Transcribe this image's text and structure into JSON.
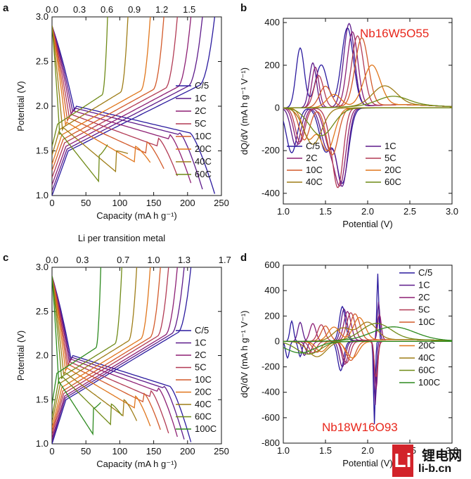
{
  "figure": {
    "lithiation_axis_label": "Li per transition metal",
    "legend_colors": {
      "C/5": "#2a1a9e",
      "1C": "#5d1a8a",
      "2C": "#8d1f74",
      "5C": "#b23a54",
      "10C": "#d35a2a",
      "20C": "#e0761c",
      "40C": "#9e7d17",
      "60C": "#6f8a17",
      "100C": "#2d8a1f"
    }
  },
  "watermark": {
    "logo_text": "Li",
    "chinese": "锂电网",
    "url": "li-b.cn"
  },
  "chart_data": [
    {
      "panel": "a",
      "type": "line",
      "xlabel": "Capacity (mA h g⁻¹)",
      "ylabel": "Potential (V)",
      "xlim": [
        0,
        250
      ],
      "ylim": [
        1.0,
        3.0
      ],
      "xticks": [
        0,
        50,
        100,
        150,
        200,
        250
      ],
      "yticks": [
        1.0,
        1.5,
        2.0,
        2.5,
        3.0
      ],
      "top_axis_ticks": [
        "0.0",
        "0.3",
        "0.6",
        "0.9",
        "1.2",
        "1.5"
      ],
      "top_axis_positions": [
        0,
        40.5,
        81,
        121.5,
        162,
        202.5
      ],
      "legend": [
        "C/5",
        "1C",
        "2C",
        "5C",
        "10C",
        "20C",
        "40C",
        "60C"
      ],
      "series": [
        {
          "name": "C/5",
          "capacity": 240,
          "vstart": 1.0,
          "vtop": 2.55,
          "plateau": 1.7,
          "shift": 0
        },
        {
          "name": "1C",
          "capacity": 222,
          "vstart": 1.05,
          "vtop": 2.52,
          "plateau": 1.7,
          "shift": 0.02
        },
        {
          "name": "2C",
          "capacity": 205,
          "vstart": 1.12,
          "vtop": 2.48,
          "plateau": 1.68,
          "shift": 0.05
        },
        {
          "name": "5C",
          "capacity": 185,
          "vstart": 1.2,
          "vtop": 2.42,
          "plateau": 1.64,
          "shift": 0.09
        },
        {
          "name": "10C",
          "capacity": 165,
          "vstart": 1.28,
          "vtop": 2.36,
          "plateau": 1.6,
          "shift": 0.13
        },
        {
          "name": "20C",
          "capacity": 145,
          "vstart": 1.35,
          "vtop": 2.3,
          "plateau": 1.55,
          "shift": 0.18
        },
        {
          "name": "40C",
          "capacity": 112,
          "vstart": 1.45,
          "vtop": 2.22,
          "plateau": 1.5,
          "shift": 0.24
        },
        {
          "name": "60C",
          "capacity": 82,
          "vstart": 1.55,
          "vtop": 2.12,
          "plateau": 1.45,
          "shift": 0.3
        }
      ]
    },
    {
      "panel": "b",
      "type": "line",
      "compound": "Nb16W5O55",
      "xlabel": "Potential (V)",
      "ylabel": "dQ/dV (mA h g⁻¹ V⁻¹)",
      "xlim": [
        1.0,
        3.0
      ],
      "ylim": [
        -450,
        420
      ],
      "xticks": [
        1.0,
        1.5,
        2.0,
        2.5,
        3.0
      ],
      "yticks": [
        -400,
        -200,
        0,
        200,
        400
      ],
      "legend": [
        "C/5",
        "1C",
        "2C",
        "5C",
        "10C",
        "20C",
        "40C",
        "60C"
      ],
      "series": [
        {
          "name": "C/5",
          "peaks": [
            [
              1.2,
              280,
              0.07
            ],
            [
              1.45,
              200,
              0.1
            ],
            [
              1.76,
              370,
              0.1
            ]
          ],
          "troughs": [
            [
              1.1,
              -210,
              0.09
            ],
            [
              1.5,
              -200,
              0.1
            ],
            [
              1.7,
              -350,
              0.1
            ]
          ]
        },
        {
          "name": "1C",
          "peaks": [
            [
              1.35,
              210,
              0.06
            ],
            [
              1.78,
              390,
              0.09
            ]
          ],
          "troughs": [
            [
              1.15,
              -180,
              0.08
            ],
            [
              1.52,
              -190,
              0.1
            ],
            [
              1.7,
              -360,
              0.09
            ]
          ]
        },
        {
          "name": "2C",
          "peaks": [
            [
              1.38,
              190,
              0.06
            ],
            [
              1.82,
              350,
              0.09
            ]
          ],
          "troughs": [
            [
              1.18,
              -170,
              0.08
            ],
            [
              1.55,
              -170,
              0.1
            ],
            [
              1.68,
              -330,
              0.09
            ]
          ]
        },
        {
          "name": "5C",
          "peaks": [
            [
              1.42,
              150,
              0.08
            ],
            [
              1.88,
              330,
              0.1
            ]
          ],
          "troughs": [
            [
              1.2,
              -160,
              0.08
            ],
            [
              1.6,
              -150,
              0.1
            ],
            [
              1.66,
              -260,
              0.08
            ]
          ]
        },
        {
          "name": "10C",
          "peaks": [
            [
              1.5,
              100,
              0.1
            ],
            [
              1.93,
              320,
              0.11
            ]
          ],
          "troughs": [
            [
              1.25,
              -150,
              0.09
            ],
            [
              1.58,
              -220,
              0.1
            ]
          ]
        },
        {
          "name": "20C",
          "peaks": [
            [
              1.6,
              60,
              0.12
            ],
            [
              2.05,
              190,
              0.14
            ]
          ],
          "troughs": [
            [
              1.3,
              -140,
              0.1
            ],
            [
              1.52,
              -200,
              0.12
            ]
          ]
        },
        {
          "name": "40C",
          "peaks": [
            [
              2.2,
              90,
              0.2
            ]
          ],
          "troughs": [
            [
              1.35,
              -170,
              0.15
            ]
          ]
        },
        {
          "name": "60C",
          "peaks": [
            [
              2.3,
              40,
              0.25
            ]
          ],
          "troughs": [
            [
              1.45,
              -130,
              0.2
            ]
          ]
        }
      ]
    },
    {
      "panel": "c",
      "type": "line",
      "xlabel": "Capacity (mA h g⁻¹)",
      "ylabel": "Potential (V)",
      "xlim": [
        0,
        250
      ],
      "ylim": [
        1.0,
        3.0
      ],
      "xticks": [
        0,
        50,
        100,
        150,
        200,
        250
      ],
      "yticks": [
        1.0,
        1.5,
        2.0,
        2.5,
        3.0
      ],
      "top_axis_ticks": [
        "0.0",
        "0.3",
        "0.7",
        "1.0",
        "1.3",
        "1.7"
      ],
      "top_axis_positions": [
        0,
        45,
        105,
        150,
        195,
        255
      ],
      "legend": [
        "C/5",
        "1C",
        "2C",
        "5C",
        "10C",
        "20C",
        "40C",
        "60C",
        "100C"
      ],
      "series": [
        {
          "name": "C/5",
          "capacity": 205,
          "vstart": 1.0,
          "vtop": 2.6,
          "plateau": 1.65,
          "shift": 0
        },
        {
          "name": "1C",
          "capacity": 195,
          "vstart": 1.03,
          "vtop": 2.56,
          "plateau": 1.65,
          "shift": 0.02
        },
        {
          "name": "2C",
          "capacity": 185,
          "vstart": 1.06,
          "vtop": 2.52,
          "plateau": 1.63,
          "shift": 0.04
        },
        {
          "name": "5C",
          "capacity": 172,
          "vstart": 1.1,
          "vtop": 2.47,
          "plateau": 1.6,
          "shift": 0.07
        },
        {
          "name": "10C",
          "capacity": 160,
          "vstart": 1.14,
          "vtop": 2.42,
          "plateau": 1.57,
          "shift": 0.1
        },
        {
          "name": "20C",
          "capacity": 145,
          "vstart": 1.18,
          "vtop": 2.36,
          "plateau": 1.54,
          "shift": 0.14
        },
        {
          "name": "40C",
          "capacity": 125,
          "vstart": 1.24,
          "vtop": 2.28,
          "plateau": 1.5,
          "shift": 0.19
        },
        {
          "name": "60C",
          "capacity": 103,
          "vstart": 1.3,
          "vtop": 2.18,
          "plateau": 1.45,
          "shift": 0.24
        },
        {
          "name": "100C",
          "capacity": 72,
          "vstart": 1.45,
          "vtop": 2.05,
          "plateau": 1.4,
          "shift": 0.3
        }
      ]
    },
    {
      "panel": "d",
      "type": "line",
      "compound": "Nb18W16O93",
      "xlabel": "Potential (V)",
      "ylabel": "dQ/dV (mA h g⁻¹ V⁻¹)",
      "xlim": [
        1.0,
        3.0
      ],
      "ylim": [
        -800,
        600
      ],
      "xticks": [
        1.0,
        1.5,
        2.0,
        2.5,
        3.0
      ],
      "yticks": [
        -800,
        -600,
        -400,
        -200,
        0,
        200,
        400,
        600
      ],
      "legend": [
        "C/5",
        "1C",
        "2C",
        "5C",
        "10C",
        "20C",
        "40C",
        "60C",
        "100C"
      ],
      "series": [
        {
          "name": "C/5",
          "peaks": [
            [
              1.1,
              160,
              0.03
            ],
            [
              1.7,
              270,
              0.05
            ],
            [
              2.12,
              520,
              0.015
            ]
          ],
          "troughs": [
            [
              1.05,
              -130,
              0.03
            ],
            [
              1.2,
              -120,
              0.03
            ],
            [
              1.68,
              -230,
              0.05
            ],
            [
              2.08,
              -650,
              0.015
            ]
          ]
        },
        {
          "name": "1C",
          "peaks": [
            [
              1.2,
              150,
              0.04
            ],
            [
              1.72,
              250,
              0.05
            ],
            [
              2.13,
              300,
              0.02
            ]
          ],
          "troughs": [
            [
              1.25,
              -110,
              0.04
            ],
            [
              1.7,
              -200,
              0.05
            ],
            [
              2.09,
              -500,
              0.02
            ]
          ]
        },
        {
          "name": "2C",
          "peaks": [
            [
              1.35,
              140,
              0.05
            ],
            [
              1.76,
              230,
              0.06
            ],
            [
              2.14,
              200,
              0.03
            ]
          ],
          "troughs": [
            [
              1.3,
              -100,
              0.05
            ],
            [
              1.73,
              -180,
              0.05
            ],
            [
              2.1,
              -380,
              0.025
            ]
          ]
        },
        {
          "name": "5C",
          "peaks": [
            [
              1.45,
              130,
              0.06
            ],
            [
              1.8,
              220,
              0.07
            ]
          ],
          "troughs": [
            [
              1.35,
              -90,
              0.06
            ],
            [
              1.75,
              -170,
              0.06
            ],
            [
              2.1,
              -280,
              0.03
            ]
          ]
        },
        {
          "name": "10C",
          "peaks": [
            [
              1.5,
              120,
              0.07
            ],
            [
              1.85,
              210,
              0.08
            ]
          ],
          "troughs": [
            [
              1.4,
              -85,
              0.07
            ],
            [
              1.8,
              -150,
              0.08
            ]
          ]
        },
        {
          "name": "20C",
          "peaks": [
            [
              1.6,
              110,
              0.1
            ],
            [
              1.9,
              180,
              0.1
            ]
          ],
          "troughs": [
            [
              1.45,
              -80,
              0.09
            ],
            [
              1.82,
              -130,
              0.1
            ]
          ]
        },
        {
          "name": "40C",
          "peaks": [
            [
              1.7,
              100,
              0.15
            ],
            [
              2.0,
              140,
              0.15
            ]
          ],
          "troughs": [
            [
              1.4,
              -120,
              0.15
            ]
          ]
        },
        {
          "name": "60C",
          "peaks": [
            [
              2.1,
              130,
              0.25
            ]
          ],
          "troughs": [
            [
              1.3,
              -100,
              0.2
            ]
          ]
        },
        {
          "name": "100C",
          "peaks": [
            [
              2.3,
              100,
              0.35
            ]
          ],
          "troughs": [
            [
              1.2,
              -90,
              0.25
            ]
          ]
        }
      ]
    }
  ]
}
